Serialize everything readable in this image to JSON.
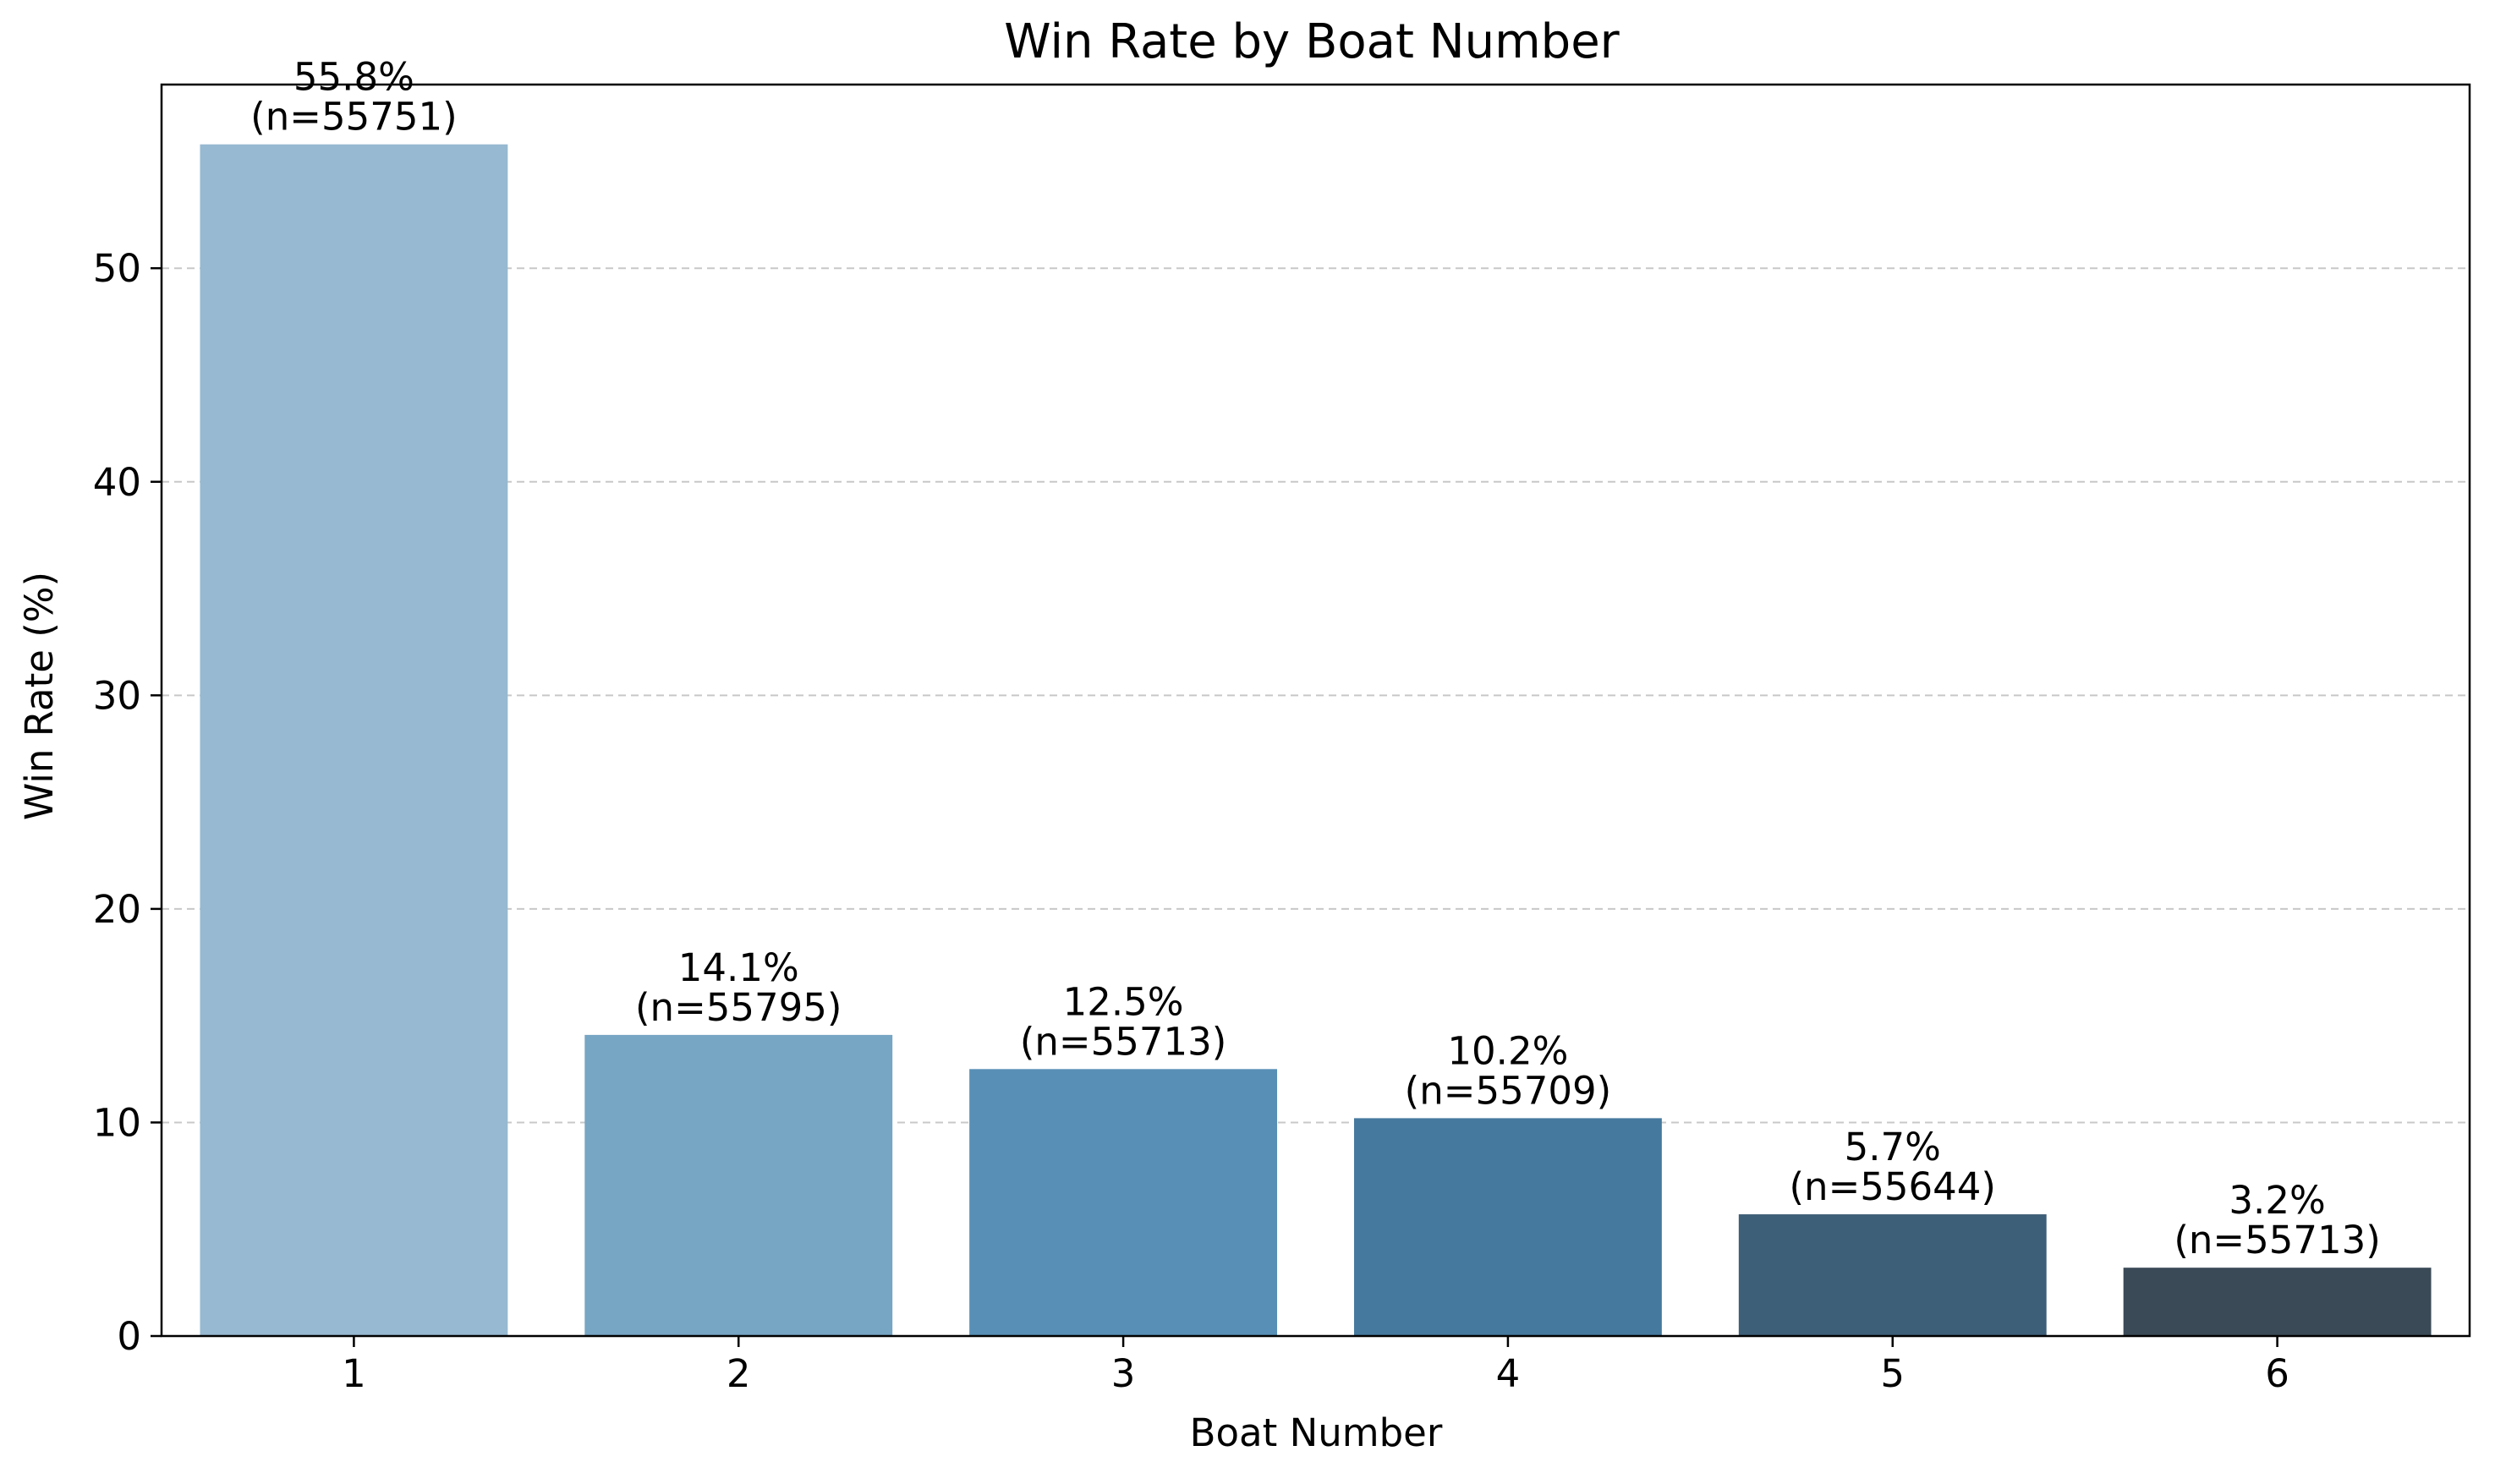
{
  "chart_data": {
    "type": "bar",
    "title": "Win Rate by Boat Number",
    "xlabel": "Boat Number",
    "ylabel": "Win Rate (%)",
    "categories": [
      "1",
      "2",
      "3",
      "4",
      "5",
      "6"
    ],
    "values": [
      55.8,
      14.1,
      12.5,
      10.2,
      5.7,
      3.2
    ],
    "value_labels": [
      "55.8%",
      "14.1%",
      "12.5%",
      "10.2%",
      "5.7%",
      "3.2%"
    ],
    "sample_labels": [
      "(n=55751)",
      "(n=55795)",
      "(n=55713)",
      "(n=55709)",
      "(n=55644)",
      "(n=55713)"
    ],
    "ylim": [
      0,
      58.6
    ],
    "yticks": [
      0,
      10,
      20,
      30,
      40,
      50
    ],
    "grid": {
      "y": true,
      "x": false,
      "style": "dashed"
    },
    "legend": "none",
    "colors": [
      "#97b9d1",
      "#77a5c4",
      "#588fb6",
      "#46799e",
      "#3e5f78",
      "#3a4a57"
    ],
    "grid_color": "#c8c8c8"
  }
}
